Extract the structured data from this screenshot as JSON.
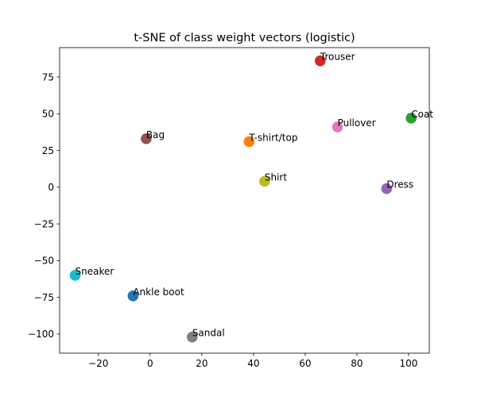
{
  "chart_data": {
    "type": "scatter",
    "title": "t-SNE of class weight vectors (logistic)",
    "xlabel": "",
    "ylabel": "",
    "xlim": [
      -35,
      108
    ],
    "ylim": [
      -113,
      95
    ],
    "xticks": [
      -20,
      0,
      20,
      40,
      60,
      80,
      100
    ],
    "yticks": [
      -100,
      -75,
      -50,
      -25,
      0,
      25,
      50,
      75
    ],
    "grid": false,
    "points": [
      {
        "label": "T-shirt/top",
        "x": 38.3,
        "y": 31,
        "color": "#ff7f0e"
      },
      {
        "label": "Trouser",
        "x": 65.8,
        "y": 86,
        "color": "#d62728"
      },
      {
        "label": "Pullover",
        "x": 72.5,
        "y": 41,
        "color": "#e377c2"
      },
      {
        "label": "Dress",
        "x": 91.5,
        "y": -1,
        "color": "#9467bd"
      },
      {
        "label": "Coat",
        "x": 101,
        "y": 47,
        "color": "#2ca02c"
      },
      {
        "label": "Sandal",
        "x": 16.3,
        "y": -102,
        "color": "#7f7f7f"
      },
      {
        "label": "Shirt",
        "x": 44.3,
        "y": 4,
        "color": "#bcbd22"
      },
      {
        "label": "Sneaker",
        "x": -29,
        "y": -60,
        "color": "#17becf"
      },
      {
        "label": "Bag",
        "x": -1.5,
        "y": 33,
        "color": "#8c564b"
      },
      {
        "label": "Ankle boot",
        "x": -6.6,
        "y": -74,
        "color": "#1f77b4"
      }
    ]
  }
}
